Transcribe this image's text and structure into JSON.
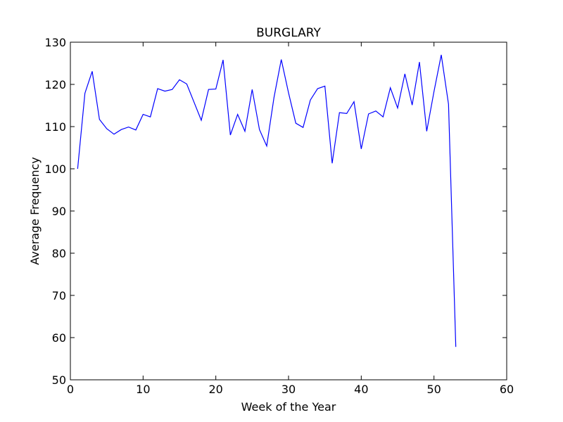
{
  "chart_data": {
    "type": "line",
    "title": "BURGLARY",
    "xlabel": "Week of the Year",
    "ylabel": "Average Frequency",
    "xlim": [
      0,
      60
    ],
    "ylim": [
      50,
      130
    ],
    "xticks": [
      0,
      10,
      20,
      30,
      40,
      50,
      60
    ],
    "yticks": [
      50,
      60,
      70,
      80,
      90,
      100,
      110,
      120,
      130
    ],
    "grid": false,
    "series": [
      {
        "color": "#0000ff",
        "x": [
          1,
          2,
          3,
          4,
          5,
          6,
          7,
          8,
          9,
          10,
          11,
          12,
          13,
          14,
          15,
          16,
          17,
          18,
          19,
          20,
          21,
          22,
          23,
          24,
          25,
          26,
          27,
          28,
          29,
          30,
          31,
          32,
          33,
          34,
          35,
          36,
          37,
          38,
          39,
          40,
          41,
          42,
          43,
          44,
          45,
          46,
          47,
          48,
          49,
          50,
          51,
          52,
          53
        ],
        "y": [
          100,
          117.9,
          123.1,
          111.7,
          109.5,
          108.2,
          109.3,
          109.9,
          109.2,
          112.9,
          112.3,
          119.0,
          118.4,
          118.8,
          121.1,
          120.1,
          115.8,
          111.5,
          118.8,
          118.9,
          125.8,
          108.0,
          112.9,
          108.9,
          118.8,
          109.3,
          105.4,
          116.9,
          125.9,
          118.0,
          110.8,
          109.8,
          116.3,
          119.0,
          119.6,
          101.3,
          113.3,
          113.1,
          115.9,
          104.7,
          113.0,
          113.7,
          112.3,
          119.2,
          114.4,
          122.5,
          115.1,
          125.3,
          108.9,
          118.3,
          127.0,
          115.3,
          57.8
        ]
      }
    ]
  }
}
